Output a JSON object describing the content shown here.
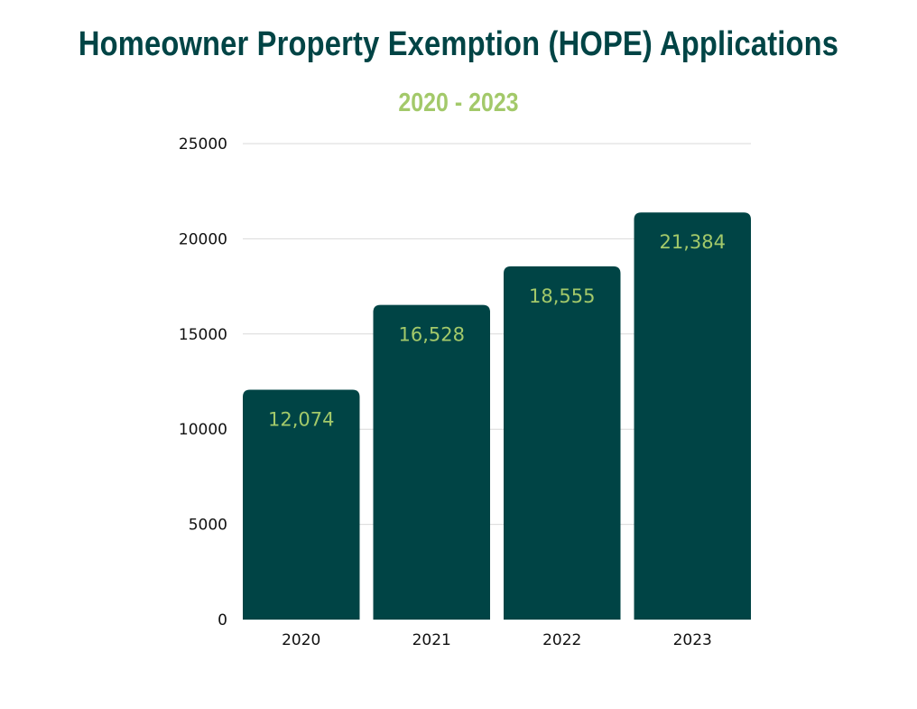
{
  "chart_data": {
    "type": "bar",
    "title": "Homeowner Property Exemption (HOPE) Applications",
    "subtitle": "2020 - 2023",
    "xlabel": "",
    "ylabel": "",
    "categories": [
      "2020",
      "2021",
      "2022",
      "2023"
    ],
    "values": [
      12074,
      16528,
      18555,
      21384
    ],
    "data_labels": [
      "12,074",
      "16,528",
      "18,555",
      "21,384"
    ],
    "ylim": [
      0,
      25000
    ],
    "yticks": [
      "0",
      "5000",
      "10000",
      "15000",
      "20000",
      "25000"
    ],
    "grid": true,
    "legend": "none",
    "colors": {
      "bar": "#004445",
      "data_label": "#a3c96a",
      "title": "#004445",
      "subtitle": "#a3c96a",
      "grid": "#d9d9d9"
    }
  }
}
